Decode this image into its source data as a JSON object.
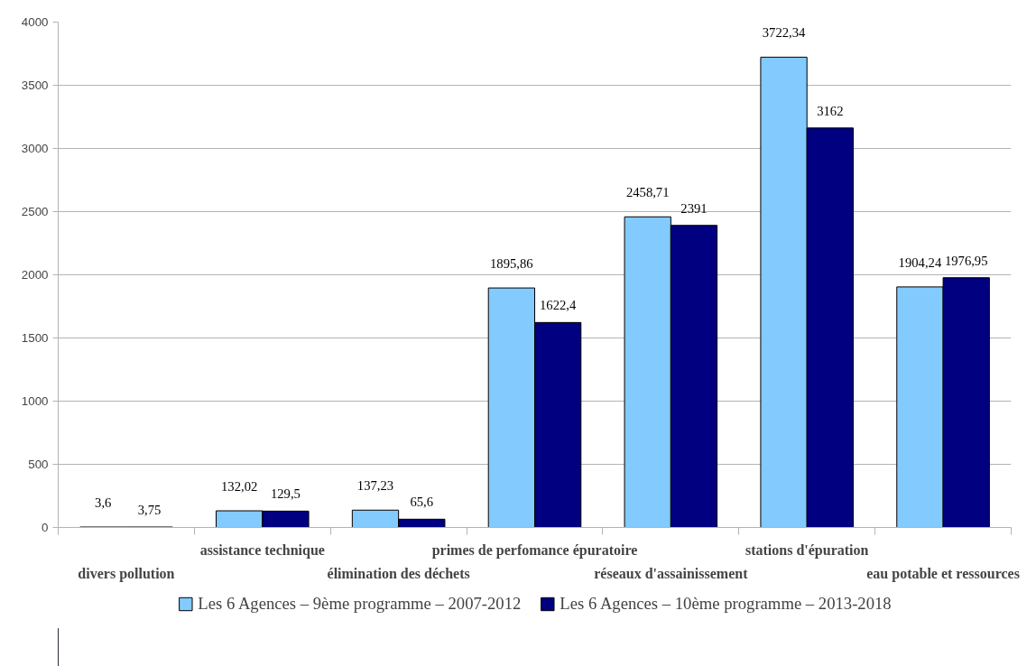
{
  "chart_data": {
    "type": "bar",
    "categories": [
      "divers pollution",
      "assistance technique",
      "élimination des déchets",
      "primes de perfomance épuratoire",
      "réseaux d'assainissement",
      "stations d'épuration",
      "eau potable et ressources"
    ],
    "series": [
      {
        "name": "Les 6 Agences – 9ème programme – 2007-2012",
        "color": "#83caff",
        "values": [
          3.6,
          132.02,
          137.23,
          1895.86,
          2458.71,
          3722.34,
          1904.24
        ],
        "value_labels": [
          "3,6",
          "132,02",
          "137,23",
          "1895,86",
          "2458,71",
          "3722,34",
          "1904,24"
        ]
      },
      {
        "name": "Les 6 Agences – 10ème programme – 2013-2018",
        "color": "#000080",
        "values": [
          3.75,
          129.5,
          65.6,
          1622.4,
          2391,
          3162,
          1976.95
        ],
        "value_labels": [
          "3,75",
          "129,5",
          "65,6",
          "1622,4",
          "2391",
          "3162",
          "1976,95"
        ]
      }
    ],
    "ylim": [
      0,
      4000
    ],
    "yticks": [
      0,
      500,
      1000,
      1500,
      2000,
      2500,
      3000,
      3500,
      4000
    ],
    "grid": "y",
    "legend": "bottom"
  }
}
